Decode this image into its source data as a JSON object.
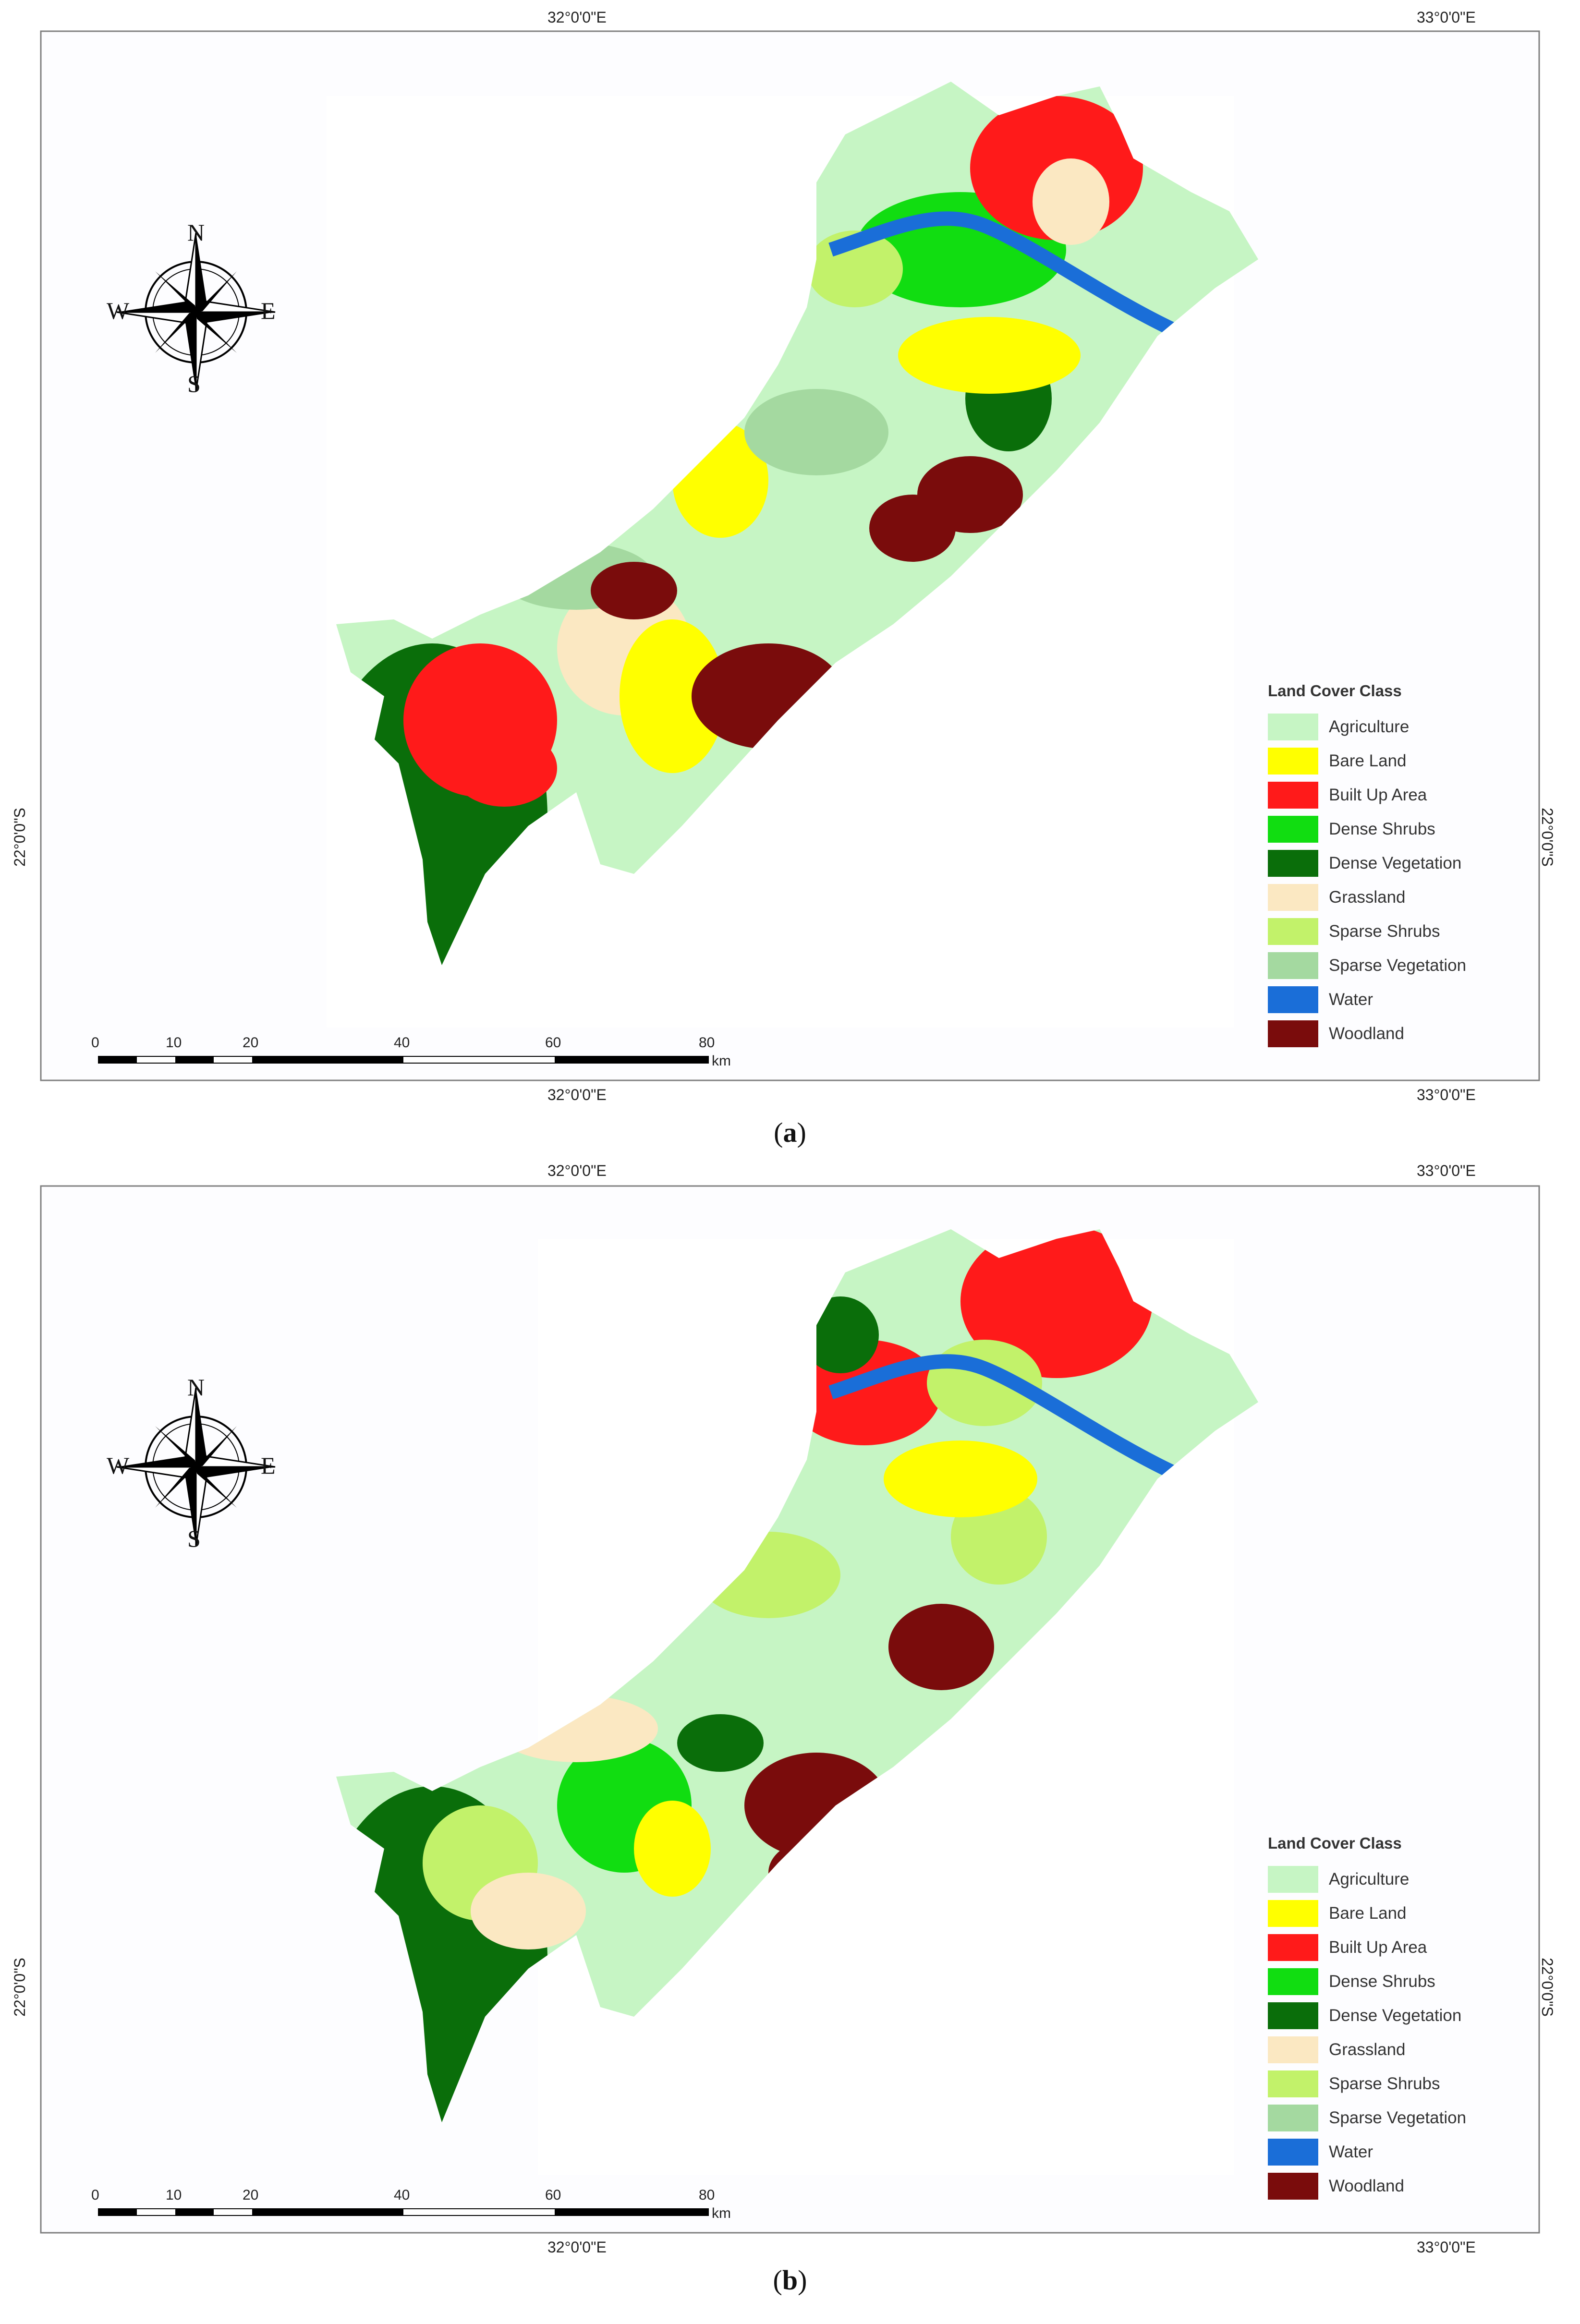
{
  "figure": {
    "panels": [
      {
        "id": "a",
        "caption": "a",
        "coord_top_left": "32°0'0\"E",
        "coord_top_right": "33°0'0\"E",
        "coord_bottom_left": "32°0'0\"E",
        "coord_bottom_right": "33°0'0\"E",
        "coord_left": "22°0'0\"S",
        "coord_right": "22°0'0\"S",
        "compass": {
          "n": "N",
          "s": "S",
          "e": "E",
          "w": "W"
        },
        "scale_bar": {
          "ticks": [
            "0",
            "10",
            "20",
            "40",
            "60",
            "80"
          ],
          "unit": "km"
        },
        "legend_title": "Land Cover Class"
      },
      {
        "id": "b",
        "caption": "b",
        "coord_top_left": "32°0'0\"E",
        "coord_top_right": "33°0'0\"E",
        "coord_bottom_left": "32°0'0\"E",
        "coord_bottom_right": "33°0'0\"E",
        "coord_left": "22°0'0\"S",
        "coord_right": "22°0'0\"S",
        "compass": {
          "n": "N",
          "s": "S",
          "e": "E",
          "w": "W"
        },
        "scale_bar": {
          "ticks": [
            "0",
            "10",
            "20",
            "40",
            "60",
            "80"
          ],
          "unit": "km"
        },
        "legend_title": "Land Cover Class"
      }
    ],
    "legend_items": [
      {
        "label": "Agriculture",
        "color": "#c6f5c4"
      },
      {
        "label": "Bare Land",
        "color": "#ffff00"
      },
      {
        "label": "Built Up Area",
        "color": "#ff1a1a"
      },
      {
        "label": "Dense Shrubs",
        "color": "#11dd11"
      },
      {
        "label": "Dense Vegetation",
        "color": "#0a6e0a"
      },
      {
        "label": "Grassland",
        "color": "#fbe8c2"
      },
      {
        "label": "Sparse Shrubs",
        "color": "#c2f26a"
      },
      {
        "label": "Sparse Vegetation",
        "color": "#a4d9a0"
      },
      {
        "label": "Water",
        "color": "#1a6ed8"
      },
      {
        "label": "Woodland",
        "color": "#7a0c0c"
      }
    ]
  }
}
